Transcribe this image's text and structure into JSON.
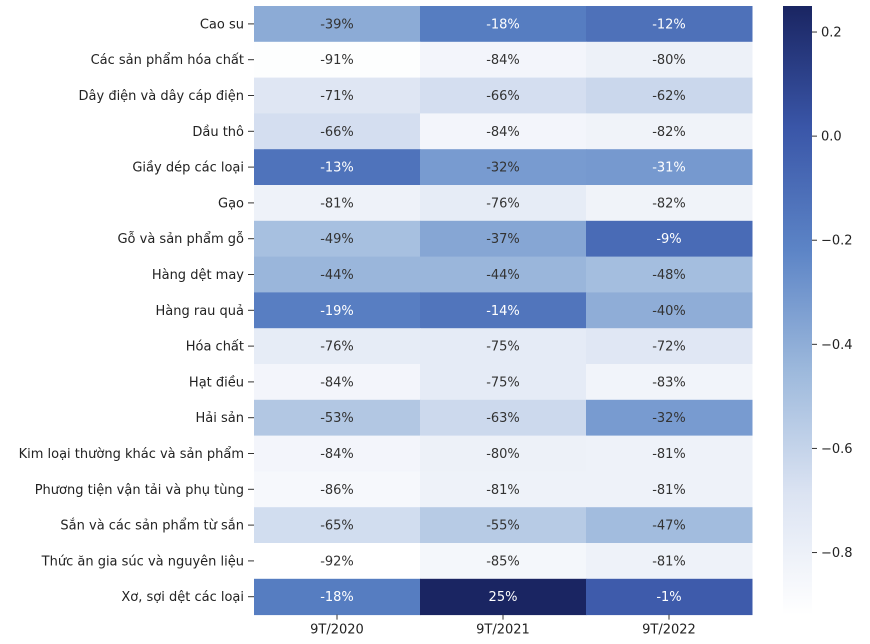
{
  "chart_data": {
    "type": "heatmap",
    "rows": [
      "Cao su",
      "Các sản phẩm hóa chất",
      "Dây điện và dây cáp điện",
      "Dầu thô",
      "Giầy dép các loại",
      "Gạo",
      "Gỗ và sản phẩm gỗ",
      "Hàng dệt may",
      "Hàng rau quả",
      "Hóa chất",
      "Hạt điều",
      "Hải sản",
      "Kim loại thường khác và sản phẩm",
      "Phương tiện vận tải và phụ tùng",
      "Sắn và các sản phẩm từ sắn",
      "Thức ăn gia súc và nguyên liệu",
      "Xơ, sợi dệt các loại"
    ],
    "columns": [
      "9T/2020",
      "9T/2021",
      "9T/2022"
    ],
    "values": [
      [
        -0.39,
        -0.18,
        -0.12
      ],
      [
        -0.91,
        -0.84,
        -0.8
      ],
      [
        -0.71,
        -0.66,
        -0.62
      ],
      [
        -0.66,
        -0.84,
        -0.82
      ],
      [
        -0.13,
        -0.32,
        -0.31
      ],
      [
        -0.81,
        -0.76,
        -0.82
      ],
      [
        -0.49,
        -0.37,
        -0.09
      ],
      [
        -0.44,
        -0.44,
        -0.48
      ],
      [
        -0.19,
        -0.14,
        -0.4
      ],
      [
        -0.76,
        -0.75,
        -0.72
      ],
      [
        -0.84,
        -0.75,
        -0.83
      ],
      [
        -0.53,
        -0.63,
        -0.32
      ],
      [
        -0.84,
        -0.8,
        -0.81
      ],
      [
        -0.86,
        -0.81,
        -0.81
      ],
      [
        -0.65,
        -0.55,
        -0.47
      ],
      [
        -0.92,
        -0.85,
        -0.81
      ],
      [
        -0.18,
        0.25,
        -0.01
      ]
    ],
    "annotations": [
      [
        "-39%",
        "-18%",
        "-12%"
      ],
      [
        "-91%",
        "-84%",
        "-80%"
      ],
      [
        "-71%",
        "-66%",
        "-62%"
      ],
      [
        "-66%",
        "-84%",
        "-82%"
      ],
      [
        "-13%",
        "-32%",
        "-31%"
      ],
      [
        "-81%",
        "-76%",
        "-82%"
      ],
      [
        "-49%",
        "-37%",
        "-9%"
      ],
      [
        "-44%",
        "-44%",
        "-48%"
      ],
      [
        "-19%",
        "-14%",
        "-40%"
      ],
      [
        "-76%",
        "-75%",
        "-72%"
      ],
      [
        "-84%",
        "-75%",
        "-83%"
      ],
      [
        "-53%",
        "-63%",
        "-32%"
      ],
      [
        "-84%",
        "-80%",
        "-81%"
      ],
      [
        "-86%",
        "-81%",
        "-81%"
      ],
      [
        "-65%",
        "-55%",
        "-47%"
      ],
      [
        "-92%",
        "-85%",
        "-81%"
      ],
      [
        "-18%",
        "25%",
        "-1%"
      ]
    ],
    "vmin": -0.92,
    "vmax": 0.25,
    "colorbar_ticks": [
      0.2,
      0.0,
      -0.2,
      -0.4,
      -0.6,
      -0.8
    ],
    "colorbar_tick_labels": [
      "0.2",
      "0.0",
      "−0.2",
      "−0.4",
      "−0.6",
      "−0.8"
    ],
    "colormap": [
      "#ffffff",
      "#dbe3f2",
      "#9db9dc",
      "#5c84c6",
      "#3a56a8",
      "#1a2562"
    ]
  }
}
